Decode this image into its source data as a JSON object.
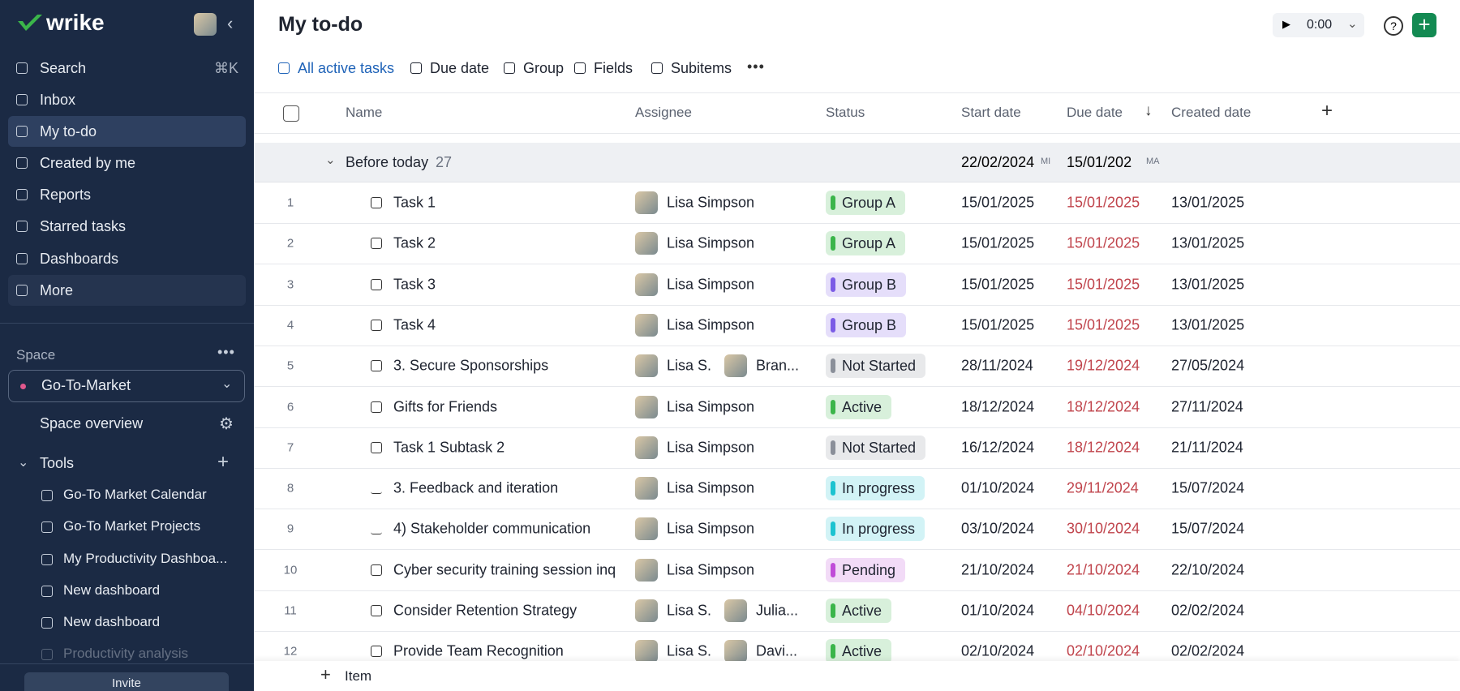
{
  "sidebar": {
    "logo": "wrike",
    "nav": [
      {
        "label": "Search",
        "shortcut": "⌘K"
      },
      {
        "label": "Inbox"
      },
      {
        "label": "My to-do"
      },
      {
        "label": "Created by me"
      },
      {
        "label": "Reports"
      },
      {
        "label": "Starred tasks"
      },
      {
        "label": "Dashboards"
      },
      {
        "label": "More"
      }
    ],
    "space_label": "Space",
    "space": "Go-To-Market",
    "space_overview": "Space overview",
    "tools_label": "Tools",
    "tools": [
      "Go-To Market Calendar",
      "Go-To Market Projects",
      "My Productivity Dashboa...",
      "New dashboard",
      "New dashboard",
      "Productivity analysis"
    ],
    "invite": "Invite"
  },
  "header": {
    "title": "My to-do",
    "timer": "0:00"
  },
  "toolbar": [
    "All active tasks",
    "Due date",
    "Group",
    "Fields",
    "Subitems"
  ],
  "table": {
    "columns": [
      "Name",
      "Assignee",
      "Status",
      "Start date",
      "Due date",
      "Created date"
    ],
    "group": {
      "name": "Before today",
      "count": 27,
      "start": "22/02/2024",
      "start_tag": "MI",
      "due": "15/01/202",
      "due_tag": "MA"
    },
    "rows": [
      {
        "num": 1,
        "name": "Task 1",
        "icon": "task",
        "assignees": [
          "Lisa Simpson"
        ],
        "status": "Group A",
        "color": "#3bb54a",
        "start": "15/01/2025",
        "due": "15/01/2025",
        "created": "13/01/2025"
      },
      {
        "num": 2,
        "name": "Task 2",
        "icon": "task",
        "assignees": [
          "Lisa Simpson"
        ],
        "status": "Group A",
        "color": "#3bb54a",
        "start": "15/01/2025",
        "due": "15/01/2025",
        "created": "13/01/2025"
      },
      {
        "num": 3,
        "name": "Task 3",
        "icon": "task",
        "assignees": [
          "Lisa Simpson"
        ],
        "status": "Group B",
        "color": "#7b5ce6",
        "start": "15/01/2025",
        "due": "15/01/2025",
        "created": "13/01/2025"
      },
      {
        "num": 4,
        "name": "Task 4",
        "icon": "task",
        "assignees": [
          "Lisa Simpson"
        ],
        "status": "Group B",
        "color": "#7b5ce6",
        "start": "15/01/2025",
        "due": "15/01/2025",
        "created": "13/01/2025"
      },
      {
        "num": 5,
        "name": "3. Secure Sponsorships",
        "icon": "task",
        "assignees": [
          "Lisa S.",
          "Bran..."
        ],
        "status": "Not Started",
        "color": "#8a8f99",
        "start": "28/11/2024",
        "due": "19/12/2024",
        "created": "27/05/2024"
      },
      {
        "num": 6,
        "name": "Gifts for Friends",
        "icon": "task",
        "assignees": [
          "Lisa Simpson"
        ],
        "status": "Active",
        "color": "#3bb54a",
        "start": "18/12/2024",
        "due": "18/12/2024",
        "created": "27/11/2024"
      },
      {
        "num": 7,
        "name": "Task 1 Subtask 2",
        "icon": "task",
        "assignees": [
          "Lisa Simpson"
        ],
        "status": "Not Started",
        "color": "#8a8f99",
        "start": "16/12/2024",
        "due": "18/12/2024",
        "created": "21/11/2024"
      },
      {
        "num": 8,
        "name": "3. Feedback and iteration",
        "icon": "project",
        "assignees": [
          "Lisa Simpson"
        ],
        "status": "In progress",
        "color": "#1cc3d0",
        "start": "01/10/2024",
        "due": "29/11/2024",
        "created": "15/07/2024"
      },
      {
        "num": 9,
        "name": "4) Stakeholder communication",
        "icon": "project",
        "assignees": [
          "Lisa Simpson"
        ],
        "status": "In progress",
        "color": "#1cc3d0",
        "start": "03/10/2024",
        "due": "30/10/2024",
        "created": "15/07/2024"
      },
      {
        "num": 10,
        "name": "Cyber security training session inq",
        "icon": "request",
        "assignees": [
          "Lisa Simpson"
        ],
        "status": "Pending",
        "color": "#c04bd8",
        "start": "21/10/2024",
        "due": "21/10/2024",
        "created": "22/10/2024"
      },
      {
        "num": 11,
        "name": "Consider Retention Strategy",
        "icon": "task",
        "assignees": [
          "Lisa S.",
          "Julia..."
        ],
        "status": "Active",
        "color": "#3bb54a",
        "start": "01/10/2024",
        "due": "04/10/2024",
        "created": "02/02/2024"
      },
      {
        "num": 12,
        "name": "Provide Team Recognition",
        "icon": "task",
        "assignees": [
          "Lisa S.",
          "Davi..."
        ],
        "status": "Active",
        "color": "#3bb54a",
        "start": "02/10/2024",
        "due": "02/10/2024",
        "created": "02/02/2024"
      }
    ]
  },
  "footer": {
    "add_item": "Item"
  }
}
